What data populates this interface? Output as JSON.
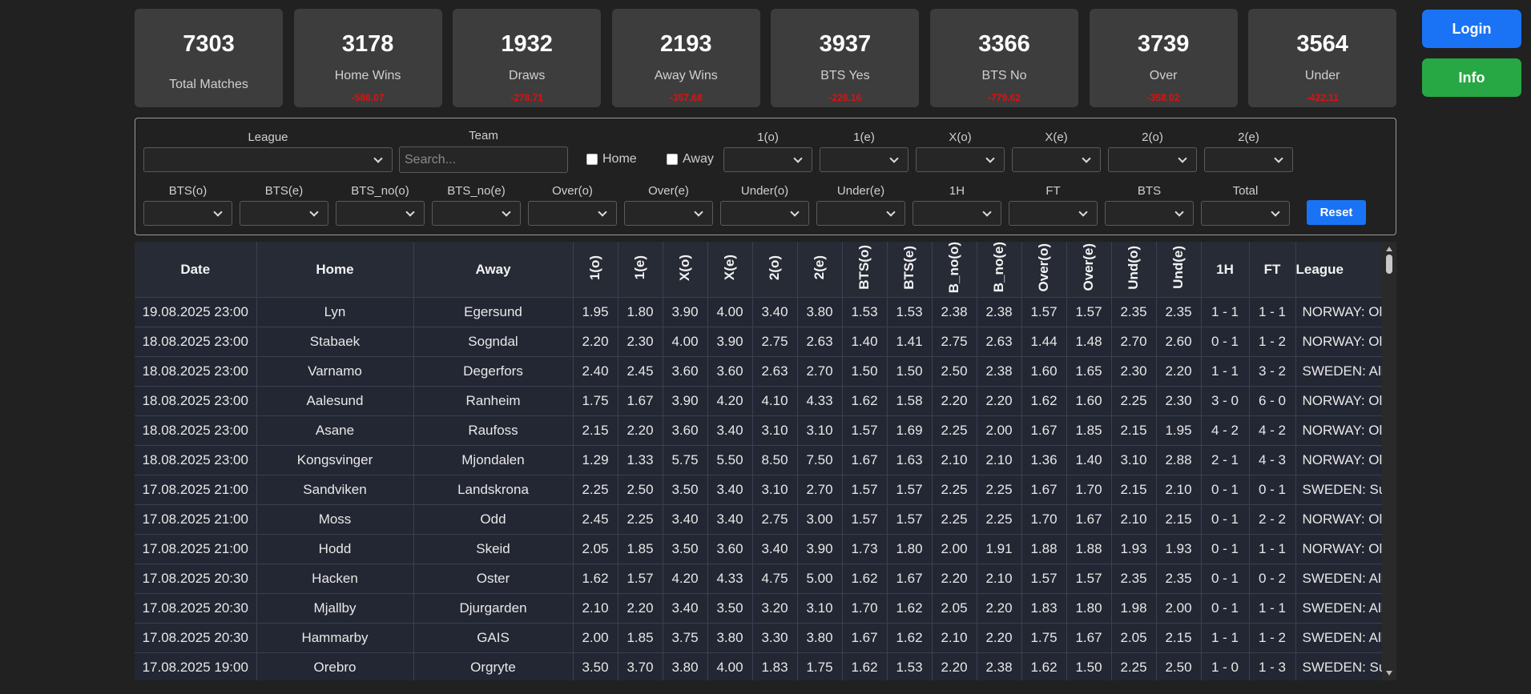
{
  "stats": [
    {
      "value": "7303",
      "label": "Total Matches"
    },
    {
      "value": "3178",
      "label": "Home Wins",
      "delta": "-586.07"
    },
    {
      "value": "1932",
      "label": "Draws",
      "delta": "-278.71"
    },
    {
      "value": "2193",
      "label": "Away Wins",
      "delta": "-357.68"
    },
    {
      "value": "3937",
      "label": "BTS Yes",
      "delta": "-226.16"
    },
    {
      "value": "3366",
      "label": "BTS No",
      "delta": "-779.62"
    },
    {
      "value": "3739",
      "label": "Over",
      "delta": "-358.02"
    },
    {
      "value": "3564",
      "label": "Under",
      "delta": "-422.11"
    }
  ],
  "buttons": {
    "login": "Login",
    "info": "Info"
  },
  "filters": {
    "league": "League",
    "team": "Team",
    "search_placeholder": "Search...",
    "home": "Home",
    "away": "Away",
    "row1": [
      "1(o)",
      "1(e)",
      "X(o)",
      "X(e)",
      "2(o)",
      "2(e)"
    ],
    "row2": [
      "BTS(o)",
      "BTS(e)",
      "BTS_no(o)",
      "BTS_no(e)",
      "Over(o)",
      "Over(e)",
      "Under(o)",
      "Under(e)",
      "1H",
      "FT",
      "BTS",
      "Total"
    ],
    "reset": "Reset"
  },
  "table": {
    "headers": [
      "Date",
      "Home",
      "Away",
      "1(o)",
      "1(e)",
      "X(o)",
      "X(e)",
      "2(o)",
      "2(e)",
      "BTS(o)",
      "BTS(e)",
      "B_no(o)",
      "B_no(e)",
      "Over(o)",
      "Over(e)",
      "Und(o)",
      "Und(e)",
      "1H",
      "FT",
      "League"
    ],
    "rows": [
      [
        "19.08.2025 23:00",
        "Lyn",
        "Egersund",
        "1.95",
        "1.80",
        "3.90",
        "4.00",
        "3.40",
        "3.80",
        "1.53",
        "1.53",
        "2.38",
        "2.38",
        "1.57",
        "1.57",
        "2.35",
        "2.35",
        "1 - 1",
        "1 - 1",
        "NORWAY: Ol"
      ],
      [
        "18.08.2025 23:00",
        "Stabaek",
        "Sogndal",
        "2.20",
        "2.30",
        "4.00",
        "3.90",
        "2.75",
        "2.63",
        "1.40",
        "1.41",
        "2.75",
        "2.63",
        "1.44",
        "1.48",
        "2.70",
        "2.60",
        "0 - 1",
        "1 - 2",
        "NORWAY: Ol"
      ],
      [
        "18.08.2025 23:00",
        "Varnamo",
        "Degerfors",
        "2.40",
        "2.45",
        "3.60",
        "3.60",
        "2.63",
        "2.70",
        "1.50",
        "1.50",
        "2.50",
        "2.38",
        "1.60",
        "1.65",
        "2.30",
        "2.20",
        "1 - 1",
        "3 - 2",
        "SWEDEN: All"
      ],
      [
        "18.08.2025 23:00",
        "Aalesund",
        "Ranheim",
        "1.75",
        "1.67",
        "3.90",
        "4.20",
        "4.10",
        "4.33",
        "1.62",
        "1.58",
        "2.20",
        "2.20",
        "1.62",
        "1.60",
        "2.25",
        "2.30",
        "3 - 0",
        "6 - 0",
        "NORWAY: Ol"
      ],
      [
        "18.08.2025 23:00",
        "Asane",
        "Raufoss",
        "2.15",
        "2.20",
        "3.60",
        "3.40",
        "3.10",
        "3.10",
        "1.57",
        "1.69",
        "2.25",
        "2.00",
        "1.67",
        "1.85",
        "2.15",
        "1.95",
        "4 - 2",
        "4 - 2",
        "NORWAY: Ol"
      ],
      [
        "18.08.2025 23:00",
        "Kongsvinger",
        "Mjondalen",
        "1.29",
        "1.33",
        "5.75",
        "5.50",
        "8.50",
        "7.50",
        "1.67",
        "1.63",
        "2.10",
        "2.10",
        "1.36",
        "1.40",
        "3.10",
        "2.88",
        "2 - 1",
        "4 - 3",
        "NORWAY: Ol"
      ],
      [
        "17.08.2025 21:00",
        "Sandviken",
        "Landskrona",
        "2.25",
        "2.50",
        "3.50",
        "3.40",
        "3.10",
        "2.70",
        "1.57",
        "1.57",
        "2.25",
        "2.25",
        "1.67",
        "1.70",
        "2.15",
        "2.10",
        "0 - 1",
        "0 - 1",
        "SWEDEN: Su"
      ],
      [
        "17.08.2025 21:00",
        "Moss",
        "Odd",
        "2.45",
        "2.25",
        "3.40",
        "3.40",
        "2.75",
        "3.00",
        "1.57",
        "1.57",
        "2.25",
        "2.25",
        "1.70",
        "1.67",
        "2.10",
        "2.15",
        "0 - 1",
        "2 - 2",
        "NORWAY: Ol"
      ],
      [
        "17.08.2025 21:00",
        "Hodd",
        "Skeid",
        "2.05",
        "1.85",
        "3.50",
        "3.60",
        "3.40",
        "3.90",
        "1.73",
        "1.80",
        "2.00",
        "1.91",
        "1.88",
        "1.88",
        "1.93",
        "1.93",
        "0 - 1",
        "1 - 1",
        "NORWAY: Ol"
      ],
      [
        "17.08.2025 20:30",
        "Hacken",
        "Oster",
        "1.62",
        "1.57",
        "4.20",
        "4.33",
        "4.75",
        "5.00",
        "1.62",
        "1.67",
        "2.20",
        "2.10",
        "1.57",
        "1.57",
        "2.35",
        "2.35",
        "0 - 1",
        "0 - 2",
        "SWEDEN: All"
      ],
      [
        "17.08.2025 20:30",
        "Mjallby",
        "Djurgarden",
        "2.10",
        "2.20",
        "3.40",
        "3.50",
        "3.20",
        "3.10",
        "1.70",
        "1.62",
        "2.05",
        "2.20",
        "1.83",
        "1.80",
        "1.98",
        "2.00",
        "0 - 1",
        "1 - 1",
        "SWEDEN: All"
      ],
      [
        "17.08.2025 20:30",
        "Hammarby",
        "GAIS",
        "2.00",
        "1.85",
        "3.75",
        "3.80",
        "3.30",
        "3.80",
        "1.67",
        "1.62",
        "2.10",
        "2.20",
        "1.75",
        "1.67",
        "2.05",
        "2.15",
        "1 - 1",
        "1 - 2",
        "SWEDEN: All"
      ],
      [
        "17.08.2025 19:00",
        "Orebro",
        "Orgryte",
        "3.50",
        "3.70",
        "3.80",
        "4.00",
        "1.83",
        "1.75",
        "1.62",
        "1.53",
        "2.20",
        "2.38",
        "1.62",
        "1.50",
        "2.25",
        "2.50",
        "1 - 0",
        "1 - 3",
        "SWEDEN: Su"
      ]
    ]
  }
}
